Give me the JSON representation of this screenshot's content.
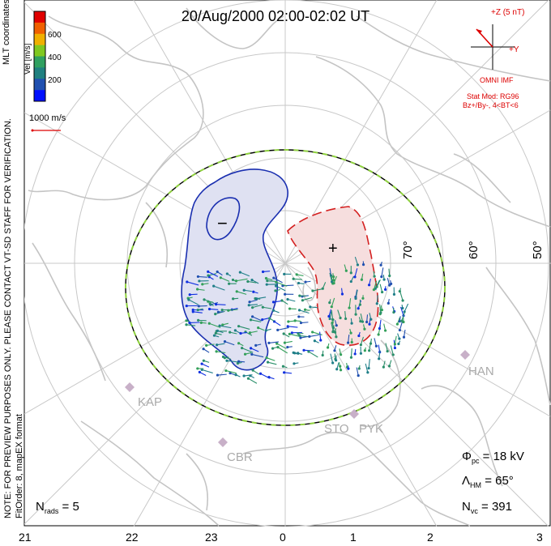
{
  "title": "20/Aug/2000 02:00-02:02 UT",
  "coordinates_label": "MLT coordinates",
  "colorbar": {
    "label": "Vel [m/s]",
    "ticks": [
      "600",
      "400",
      "200"
    ],
    "colors": [
      "#e00000",
      "#f06000",
      "#f0b000",
      "#80c820",
      "#30a060",
      "#208080",
      "#2050b0",
      "#0010ff"
    ]
  },
  "vector_scale": "1000 m/s",
  "imf": {
    "z_label": "+Z (5 nT)",
    "y_label": "+Y",
    "source": "OMNI IMF",
    "stat_mod": "Stat Mod: RG96",
    "stat_cond": "Bz+/By-, 4<BT<6",
    "clock_angle_deg": 45
  },
  "preview_note": "NOTE: FOR PREVIEW PURPOSES ONLY. PLEASE CONTACT VT-SD STAFF FOR VERIFICATION.",
  "fit_note": "FitOrder: 8, mapEX format",
  "latitude_labels": [
    "70°",
    "60°",
    "50°"
  ],
  "stations": [
    "KAP",
    "CBR",
    "STO",
    "PYK",
    "HAN"
  ],
  "mlt_labels": [
    "21",
    "22",
    "23",
    "0",
    "1",
    "2",
    "3"
  ],
  "stats": {
    "phi_pc": {
      "symbol": "Φ",
      "sub": "pc",
      "text": " = 18 kV"
    },
    "lambda_hm": {
      "symbol": "Λ",
      "sub": "HM",
      "text": " = 65°"
    },
    "n_vc": {
      "symbol": "N",
      "sub": "vc",
      "text": " = 391"
    },
    "n_rads": {
      "symbol": "N",
      "sub": "rads",
      "text": " = 5"
    }
  },
  "cells": {
    "negative_symbol": "−",
    "positive_symbol": "+"
  },
  "colors": {
    "negative_cell_line": "#1a2fb0",
    "negative_cell_fill": "#dfe1f2",
    "positive_cell_line": "#d42020",
    "positive_cell_fill": "#f6dede",
    "hmb_dash": "#8fd13f",
    "grid": "#c8c8c8",
    "coast": "#c4c4c4",
    "imf": "#d00000"
  }
}
